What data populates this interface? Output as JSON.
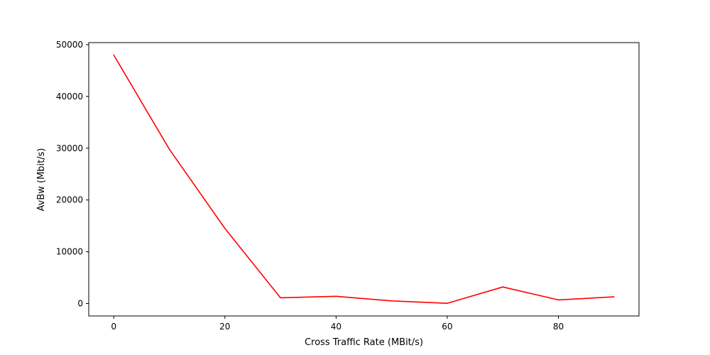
{
  "chart_data": {
    "type": "line",
    "title": "",
    "xlabel": "Cross Traffic Rate (MBit/s)",
    "ylabel": "AvBw (Mbit/s)",
    "xlim": [
      -4.5,
      94.5
    ],
    "ylim": [
      -2400,
      50400
    ],
    "x_ticks": [
      0,
      20,
      40,
      60,
      80
    ],
    "y_ticks": [
      0,
      10000,
      20000,
      30000,
      40000,
      50000
    ],
    "grid": false,
    "legend": "none",
    "series": [
      {
        "color": "#ff0000",
        "x": [
          0,
          10,
          20,
          30,
          40,
          50,
          60,
          70,
          80,
          90
        ],
        "y": [
          48000,
          29800,
          14500,
          1100,
          1400,
          500,
          50,
          3200,
          700,
          1300
        ]
      }
    ]
  }
}
